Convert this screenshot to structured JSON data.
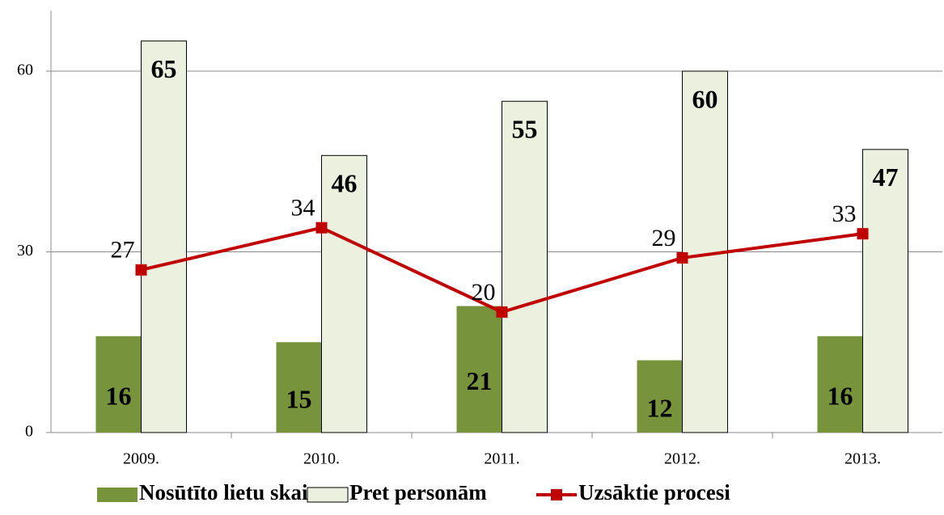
{
  "chart_data": {
    "type": "bar",
    "categories": [
      "2009.",
      "2010.",
      "2011.",
      "2012.",
      "2013."
    ],
    "series": [
      {
        "name": "Nosūtīto lietu skaits",
        "type": "bar",
        "color": "#77933c",
        "values": [
          16,
          15,
          21,
          12,
          16
        ]
      },
      {
        "name": "Pret personām",
        "type": "bar",
        "color": "#ebf1de",
        "values": [
          65,
          46,
          55,
          60,
          47
        ]
      },
      {
        "name": "Uzsāktie procesi",
        "type": "line",
        "color": "#c00000",
        "values": [
          27,
          34,
          20,
          29,
          33
        ]
      }
    ],
    "ylim": [
      0,
      70
    ],
    "yticks": [
      0,
      30,
      60
    ],
    "grid": true,
    "legend": "bottom"
  }
}
